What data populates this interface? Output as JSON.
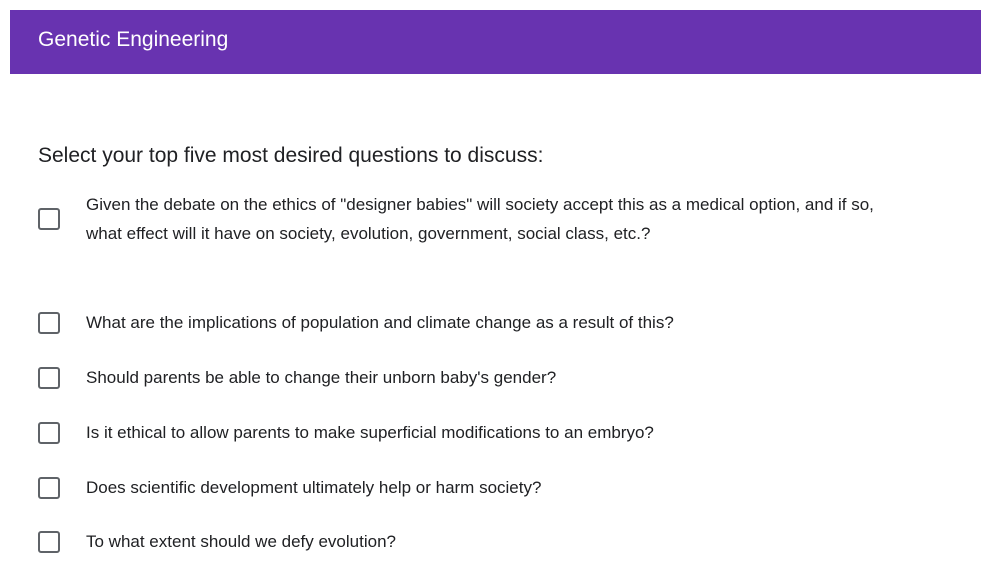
{
  "header": {
    "title": "Genetic Engineering"
  },
  "question": {
    "prompt": "Select your top five most desired questions to discuss:",
    "options": [
      "Given the debate on the ethics of \"designer babies\" will society accept this as a medical option, and if so, what effect will it have on society, evolution, government, social class, etc.?",
      "What are the implications of population and climate change as a result of this?",
      "Should parents be able to change their unborn baby's gender?",
      "Is it ethical to allow parents to make superficial modifications to an embryo?",
      "Does scientific development ultimately help or harm society?",
      "To what extent should we defy evolution?"
    ]
  }
}
